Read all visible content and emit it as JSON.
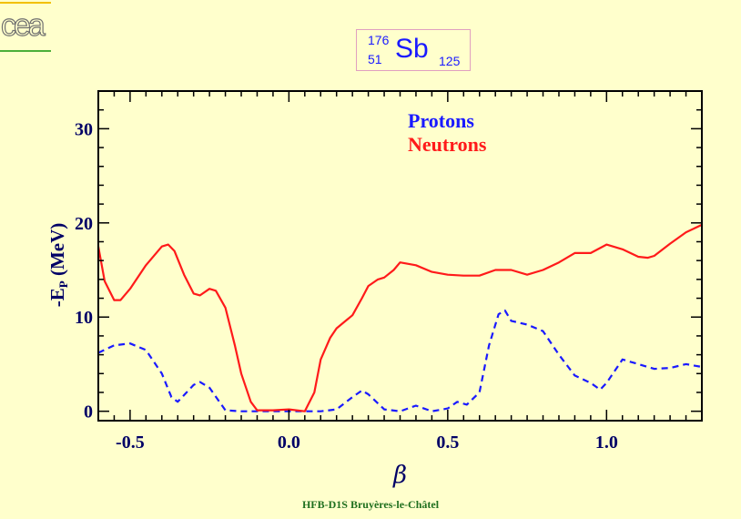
{
  "logo": {
    "text": "cea"
  },
  "nucleus": {
    "mass": "176",
    "charge": "51",
    "symbol": "Sb",
    "neutrons": "125"
  },
  "footer": {
    "text": "HFB-D1S Bruyères-le-Châtel"
  },
  "colors": {
    "protons": "#1a1aff",
    "neutrons": "#ff1a1a",
    "axes": "#000000",
    "text_dark": "#000066",
    "footer": "#1f6f1f",
    "background": "#ffffcc"
  },
  "chart_data": {
    "type": "line",
    "xlabel": "β",
    "ylabel": "-E",
    "ylabel_sub": "P",
    "ylabel_unit": " (MeV)",
    "xlim": [
      -0.6,
      1.3
    ],
    "ylim": [
      -1,
      34
    ],
    "xticks": [
      -0.5,
      0.0,
      0.5,
      1.0
    ],
    "xtick_labels": [
      "-0.5",
      "0.0",
      "0.5",
      "1.0"
    ],
    "yticks": [
      0,
      10,
      20,
      30
    ],
    "ytick_labels": [
      "0",
      "10",
      "20",
      "30"
    ],
    "legend_position": "top-center",
    "series": [
      {
        "name": "Protons",
        "color": "#1a1aff",
        "dash": true,
        "x": [
          -0.6,
          -0.55,
          -0.5,
          -0.45,
          -0.4,
          -0.37,
          -0.35,
          -0.3,
          -0.28,
          -0.25,
          -0.2,
          -0.15,
          -0.1,
          -0.05,
          0.0,
          0.05,
          0.1,
          0.15,
          0.2,
          0.23,
          0.25,
          0.3,
          0.35,
          0.4,
          0.45,
          0.5,
          0.53,
          0.56,
          0.6,
          0.63,
          0.66,
          0.68,
          0.7,
          0.75,
          0.8,
          0.85,
          0.9,
          0.95,
          0.98,
          1.0,
          1.05,
          1.1,
          1.15,
          1.2,
          1.25,
          1.3
        ],
        "y": [
          6.2,
          7.0,
          7.2,
          6.5,
          4.0,
          1.5,
          1.0,
          2.8,
          3.1,
          2.5,
          0.1,
          0.0,
          0.0,
          0.0,
          0.0,
          0.0,
          0.0,
          0.2,
          1.5,
          2.2,
          1.8,
          0.2,
          0.0,
          0.6,
          0.0,
          0.3,
          1.0,
          0.7,
          2.0,
          7.0,
          10.3,
          10.7,
          9.6,
          9.2,
          8.5,
          6.0,
          3.8,
          3.0,
          2.3,
          3.0,
          5.5,
          5.0,
          4.5,
          4.6,
          5.0,
          4.7
        ]
      },
      {
        "name": "Neutrons",
        "color": "#ff1a1a",
        "dash": false,
        "x": [
          -0.6,
          -0.58,
          -0.55,
          -0.53,
          -0.5,
          -0.45,
          -0.4,
          -0.38,
          -0.36,
          -0.33,
          -0.3,
          -0.28,
          -0.25,
          -0.23,
          -0.2,
          -0.17,
          -0.15,
          -0.12,
          -0.1,
          -0.05,
          0.0,
          0.05,
          0.08,
          0.1,
          0.13,
          0.15,
          0.2,
          0.23,
          0.25,
          0.28,
          0.3,
          0.33,
          0.35,
          0.4,
          0.45,
          0.5,
          0.55,
          0.6,
          0.65,
          0.7,
          0.75,
          0.8,
          0.85,
          0.9,
          0.95,
          1.0,
          1.05,
          1.1,
          1.13,
          1.15,
          1.2,
          1.25,
          1.3
        ],
        "y": [
          17.5,
          13.8,
          11.8,
          11.8,
          13.0,
          15.5,
          17.5,
          17.7,
          17.0,
          14.5,
          12.5,
          12.3,
          13.0,
          12.8,
          11.0,
          7.0,
          4.0,
          1.0,
          0.1,
          0.1,
          0.2,
          0.0,
          2.0,
          5.5,
          7.8,
          8.8,
          10.2,
          12.0,
          13.3,
          14.0,
          14.2,
          15.0,
          15.8,
          15.5,
          14.8,
          14.5,
          14.4,
          14.4,
          15.0,
          15.0,
          14.5,
          15.0,
          15.8,
          16.8,
          16.8,
          17.7,
          17.2,
          16.4,
          16.3,
          16.5,
          17.8,
          19.0,
          19.8
        ]
      }
    ]
  }
}
